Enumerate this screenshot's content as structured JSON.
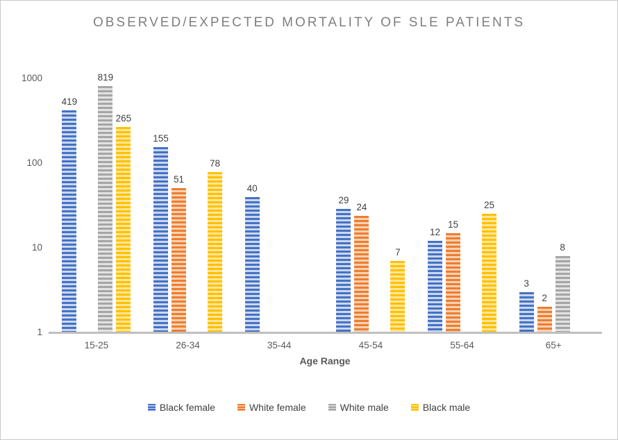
{
  "chart_data": {
    "type": "bar",
    "title": "OBSERVED/EXPECTED MORTALITY OF SLE PATIENTS",
    "xlabel": "Age Range",
    "ylabel": "",
    "y_scale": "log10",
    "ylim": [
      1,
      1000
    ],
    "y_ticks": [
      "1",
      "10",
      "100",
      "1000"
    ],
    "grid": false,
    "legend_position": "bottom",
    "bar_pattern": "horizontal-stripes",
    "categories": [
      "15-25",
      "26-34",
      "35-44",
      "45-54",
      "55-64",
      "65+"
    ],
    "series": [
      {
        "name": "Black female",
        "color": "#4472C4",
        "light_color": "#CBD7F0",
        "values": [
          419,
          155,
          40,
          29,
          12,
          3
        ]
      },
      {
        "name": "White female",
        "color": "#ED7D31",
        "light_color": "#F9D2B2",
        "values": [
          null,
          51,
          null,
          24,
          15,
          2
        ]
      },
      {
        "name": "White male",
        "color": "#A5A5A5",
        "light_color": "#E2E2E2",
        "values": [
          819,
          null,
          null,
          null,
          null,
          8
        ]
      },
      {
        "name": "Black male",
        "color": "#FFC000",
        "light_color": "#FFE699",
        "values": [
          265,
          78,
          null,
          7,
          25,
          null
        ]
      }
    ],
    "colors": {
      "title_text": "#7F7F7F",
      "axis_line": "#BFBFBF",
      "tick_text": "#595959",
      "value_label_text": "#404040",
      "figure_border": "#C9C9C9",
      "background": "#FFFFFF"
    }
  }
}
